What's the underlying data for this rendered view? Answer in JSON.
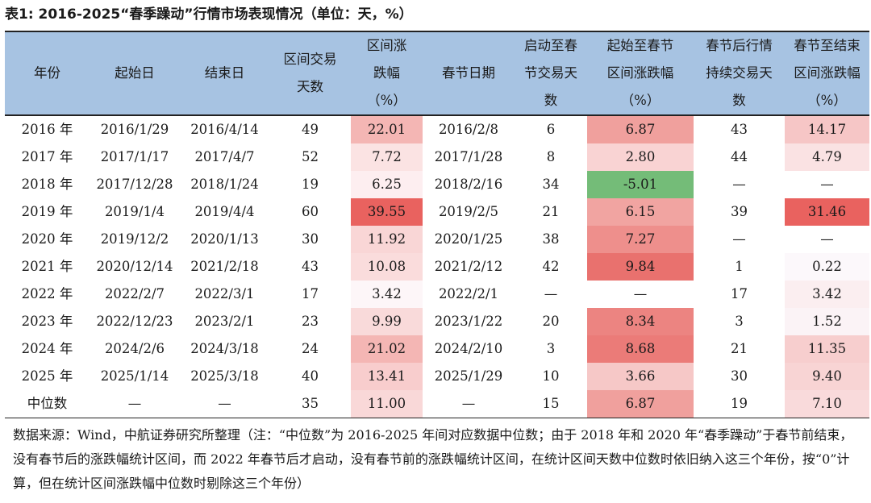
{
  "title": "表1: 2016-2025“春季躁动”行情市场表现情况（单位：天，%）",
  "headers": [
    [
      "年份"
    ],
    [
      "起始日"
    ],
    [
      "结束日"
    ],
    [
      "区间交易",
      "天数"
    ],
    [
      "区间涨",
      "跌幅",
      "（%）"
    ],
    [
      "春节日期"
    ],
    [
      "启动至春",
      "节交易天",
      "数"
    ],
    [
      "起始至春节",
      "区间涨跌幅",
      "（%）"
    ],
    [
      "春节后行情",
      "持续交易天",
      "数"
    ],
    [
      "春节至结束",
      "区间涨跌幅",
      "（%）"
    ]
  ],
  "rows": [
    [
      "2016 年",
      "2016/1/29",
      "2016/4/14",
      "49",
      "22.01",
      "2016/2/8",
      "6",
      "6.87",
      "43",
      "14.17"
    ],
    [
      "2017 年",
      "2017/1/17",
      "2017/4/7",
      "52",
      "7.72",
      "2017/1/28",
      "8",
      "2.80",
      "44",
      "4.79"
    ],
    [
      "2018 年",
      "2017/12/28",
      "2018/1/24",
      "19",
      "6.25",
      "2018/2/16",
      "34",
      "-5.01",
      "—",
      "—"
    ],
    [
      "2019 年",
      "2019/1/4",
      "2019/4/4",
      "60",
      "39.55",
      "2019/2/5",
      "21",
      "6.15",
      "39",
      "31.46"
    ],
    [
      "2020 年",
      "2019/12/2",
      "2020/1/13",
      "30",
      "11.92",
      "2020/1/25",
      "38",
      "7.27",
      "—",
      "—"
    ],
    [
      "2021 年",
      "2020/12/14",
      "2021/2/18",
      "43",
      "10.08",
      "2021/2/12",
      "42",
      "9.84",
      "1",
      "0.22"
    ],
    [
      "2022 年",
      "2022/2/7",
      "2022/3/1",
      "17",
      "3.42",
      "2022/2/1",
      "—",
      "—",
      "17",
      "3.42"
    ],
    [
      "2023 年",
      "2022/12/23",
      "2023/2/1",
      "23",
      "9.99",
      "2023/1/22",
      "20",
      "8.34",
      "3",
      "1.52"
    ],
    [
      "2024 年",
      "2024/2/6",
      "2024/3/18",
      "24",
      "21.02",
      "2024/2/10",
      "3",
      "8.68",
      "21",
      "11.35"
    ],
    [
      "2025 年",
      "2025/1/14",
      "2025/3/18",
      "40",
      "13.41",
      "2025/1/29",
      "10",
      "3.66",
      "30",
      "9.40"
    ],
    [
      "中位数",
      "—",
      "—",
      "35",
      "11.00",
      "—",
      "15",
      "6.87",
      "19",
      "7.10"
    ]
  ],
  "cell_colors": {
    "col4": [
      "#f4b6b4",
      "#fbe3e3",
      "#fdeef0",
      "#e9625f",
      "#f9d6d6",
      "#fadcdc",
      "#fdf6f8",
      "#f9dada",
      "#f4b6b4",
      "#f8cdcd",
      "#f9d8d8"
    ],
    "col7": [
      "#f0a09d",
      "#f9d3d3",
      "#74bc78",
      "#f1a4a1",
      "#ee8f8c",
      "#e9716e",
      "#ffffff",
      "#ec8481",
      "#eb7b78",
      "#f6c8c7",
      "#f0a09d"
    ],
    "col9": [
      "#f6c6c6",
      "#fae2e3",
      "#ffffff",
      "#e9625f",
      "#ffffff",
      "#fcf8fb",
      "#fbeef0",
      "#fbf3f6",
      "#f7cece",
      "#f8d4d4",
      "#f9dadb"
    ]
  },
  "note": "数据来源：Wind，中航证券研究所整理（注：“中位数”为 2016-2025 年间对应数据中位数；由于 2018 年和 2020 年“春季躁动”于春节前结束，没有春节后的涨跌幅统计区间，而 2022 年春节后才启动，没有春节前的涨跌幅统计区间，在统计区间天数中位数时依旧纳入这三个年份，按“0”计算，但在统计区间涨跌幅中位数时剔除这三个年份）"
}
